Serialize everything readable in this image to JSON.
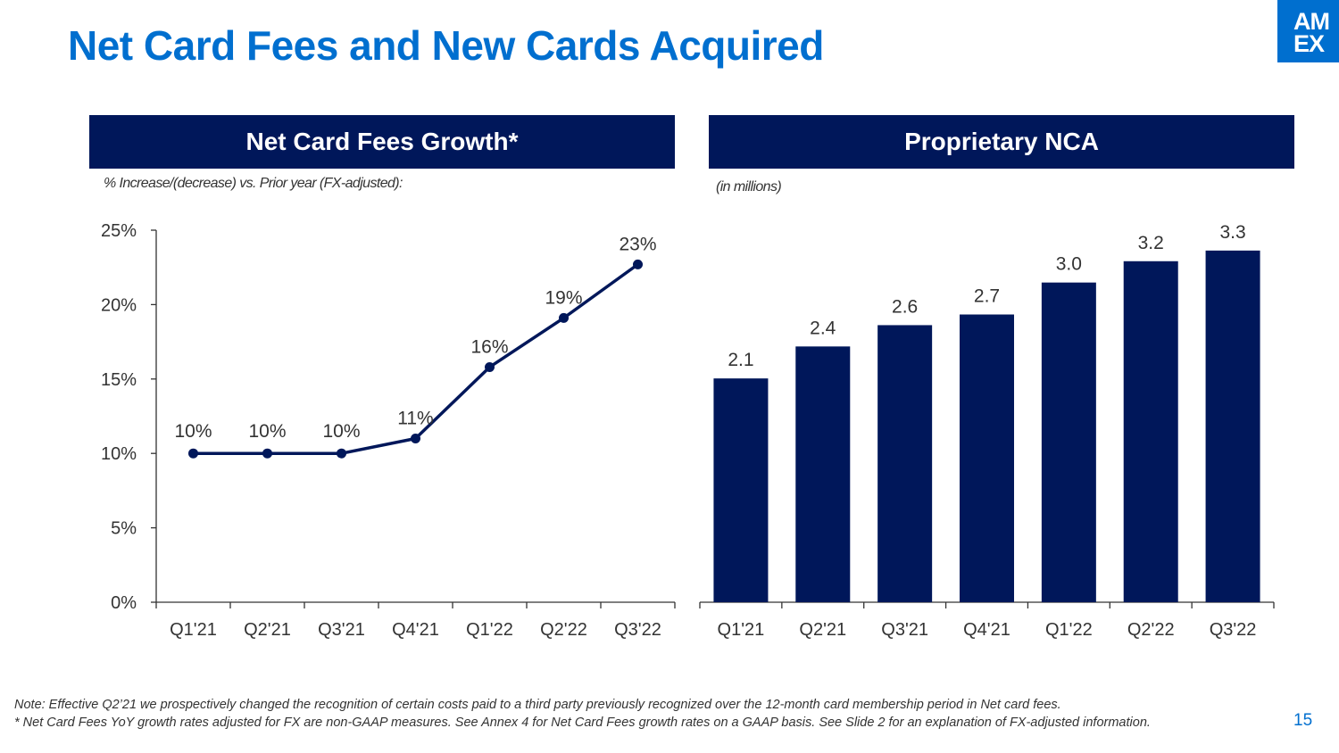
{
  "page": {
    "title": "Net Card Fees and New Cards Acquired",
    "logo_line1": "AM",
    "logo_line2": "EX",
    "page_number": "15",
    "colors": {
      "title": "#006fcf",
      "header_bg": "#00175a",
      "series": "#00175a",
      "logo_bg": "#006fcf"
    }
  },
  "left_panel": {
    "header": "Net Card Fees Growth*",
    "subtitle": "% Increase/(decrease) vs. Prior year (FX-adjusted):"
  },
  "right_panel": {
    "header": "Proprietary NCA",
    "subtitle": "(in millions)"
  },
  "footnote": {
    "line1": "Note: Effective Q2’21 we prospectively changed the recognition of certain costs paid to a third party previously recognized over the 12-month card membership period in Net card fees.",
    "line2": "* Net Card Fees YoY growth rates adjusted for FX are non-GAAP measures. See Annex 4 for Net Card Fees growth rates on a GAAP basis. See Slide 2 for an explanation of FX-adjusted information."
  },
  "chart_data": [
    {
      "type": "line",
      "categories": [
        "Q1'21",
        "Q2'21",
        "Q3'21",
        "Q4'21",
        "Q1'22",
        "Q2'22",
        "Q3'22"
      ],
      "values": [
        10,
        10,
        10,
        11,
        15.8,
        19.1,
        22.7
      ],
      "data_labels": [
        "10%",
        "10%",
        "10%",
        "11%",
        "16%",
        "19%",
        "23%"
      ],
      "ylim": [
        0,
        25
      ],
      "yticks": [
        0,
        5,
        10,
        15,
        20,
        25
      ],
      "ytick_labels": [
        "0%",
        "5%",
        "10%",
        "15%",
        "20%",
        "25%"
      ],
      "grid": false,
      "color": "#00175a"
    },
    {
      "type": "bar",
      "categories": [
        "Q1'21",
        "Q2'21",
        "Q3'21",
        "Q4'21",
        "Q1'22",
        "Q2'22",
        "Q3'22"
      ],
      "values": [
        2.1,
        2.4,
        2.6,
        2.7,
        3.0,
        3.2,
        3.3
      ],
      "data_labels": [
        "2.1",
        "2.4",
        "2.6",
        "2.7",
        "3.0",
        "3.2",
        "3.3"
      ],
      "ylim": [
        0,
        3.6
      ],
      "grid": false,
      "color": "#00175a"
    }
  ]
}
